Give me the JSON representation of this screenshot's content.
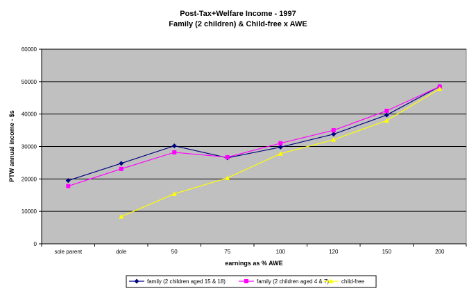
{
  "chart_data": {
    "type": "line",
    "title_line1": "Post-Tax+Welfare Income - 1997",
    "title_line2": "Family (2 children) & Child-free x AWE",
    "xlabel": "earnings as % AWE",
    "ylabel": "PTW annual income - $s",
    "categories": [
      "sole parent",
      "dole",
      "50",
      "75",
      "100",
      "120",
      "150",
      "200"
    ],
    "ylim": [
      0,
      60000
    ],
    "yticks": [
      "0",
      "10000",
      "20000",
      "30000",
      "40000",
      "50000",
      "60000"
    ],
    "grid": true,
    "legend_position": "bottom",
    "plot_background": "#c0c0c0",
    "series": [
      {
        "name": "family (2 children aged 15 & 18)",
        "color": "#000080",
        "marker": "diamond",
        "values": [
          19500,
          24800,
          30200,
          26500,
          29800,
          33800,
          39700,
          48500
        ]
      },
      {
        "name": "family (2 children aged 4 & 7)",
        "color": "#ff00ff",
        "marker": "square",
        "values": [
          17800,
          23100,
          28200,
          26700,
          31000,
          35000,
          41000,
          48500
        ]
      },
      {
        "name": "child-free",
        "color": "#ffff00",
        "marker": "triangle",
        "values": [
          null,
          8400,
          15400,
          20300,
          27800,
          32100,
          38000,
          47800
        ]
      }
    ]
  }
}
